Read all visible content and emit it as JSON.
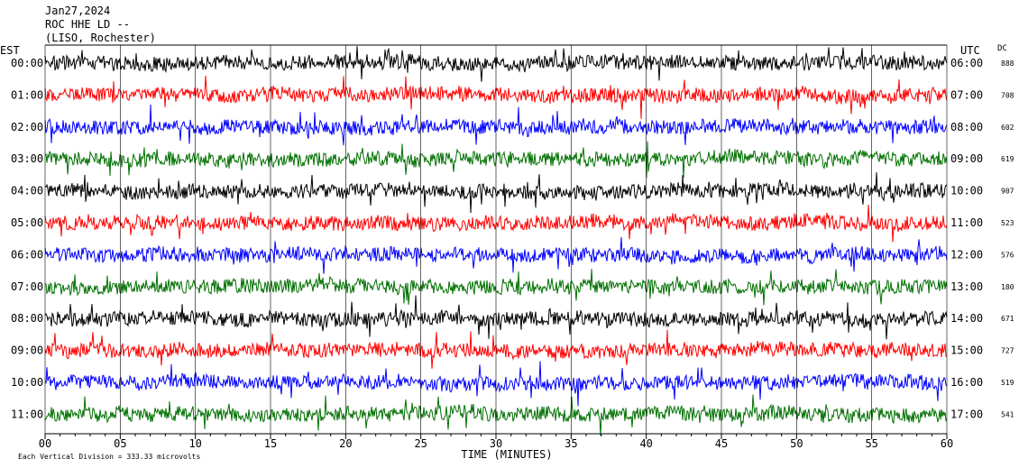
{
  "header": {
    "date": "Jan27,2024",
    "station": "ROC HHE LD --",
    "location": "(LISO, Rochester)"
  },
  "axes": {
    "left_label": "EST",
    "right_label": "UTC",
    "dc_label": "DC",
    "xlabel": "TIME (MINUTES)",
    "footer": "Each Vertical Division =  333.33 microvolts"
  },
  "colors": {
    "trace_cycle": [
      "#000000",
      "#ff0000",
      "#0000ff",
      "#007000"
    ],
    "axis": "#000000",
    "background": "#ffffff"
  },
  "chart_data": {
    "type": "line",
    "title": "Jan27,2024",
    "xlabel": "TIME (MINUTES)",
    "xlim": [
      0,
      60
    ],
    "x_ticks": [
      "00",
      "05",
      "10",
      "15",
      "20",
      "25",
      "30",
      "35",
      "40",
      "45",
      "50",
      "55",
      "60"
    ],
    "left_ticks": [
      "00:00",
      "01:00",
      "02:00",
      "03:00",
      "04:00",
      "05:00",
      "06:00",
      "07:00",
      "08:00",
      "09:00",
      "10:00",
      "11:00"
    ],
    "right_ticks": [
      "06:00",
      "07:00",
      "08:00",
      "09:00",
      "10:00",
      "11:00",
      "12:00",
      "13:00",
      "14:00",
      "15:00",
      "16:00",
      "17:00"
    ],
    "dc_values": [
      "888",
      "708",
      "602",
      "619",
      "907",
      "523",
      "576",
      "180",
      "671",
      "727",
      "519",
      "541"
    ],
    "grid": "vertical lines at each minute tick",
    "series": [
      {
        "left": "00:00",
        "right": "06:00",
        "dc": "888",
        "color": "#000000"
      },
      {
        "left": "01:00",
        "right": "07:00",
        "dc": "708",
        "color": "#ff0000"
      },
      {
        "left": "02:00",
        "right": "08:00",
        "dc": "602",
        "color": "#0000ff"
      },
      {
        "left": "03:00",
        "right": "09:00",
        "dc": "619",
        "color": "#007000"
      },
      {
        "left": "04:00",
        "right": "10:00",
        "dc": "907",
        "color": "#000000"
      },
      {
        "left": "05:00",
        "right": "11:00",
        "dc": "523",
        "color": "#ff0000"
      },
      {
        "left": "06:00",
        "right": "12:00",
        "dc": "576",
        "color": "#0000ff"
      },
      {
        "left": "07:00",
        "right": "13:00",
        "dc": "180",
        "color": "#007000"
      },
      {
        "left": "08:00",
        "right": "14:00",
        "dc": "671",
        "color": "#000000"
      },
      {
        "left": "09:00",
        "right": "15:00",
        "dc": "727",
        "color": "#ff0000"
      },
      {
        "left": "10:00",
        "right": "16:00",
        "dc": "519",
        "color": "#0000ff"
      },
      {
        "left": "11:00",
        "right": "17:00",
        "dc": "541",
        "color": "#007000"
      }
    ]
  }
}
